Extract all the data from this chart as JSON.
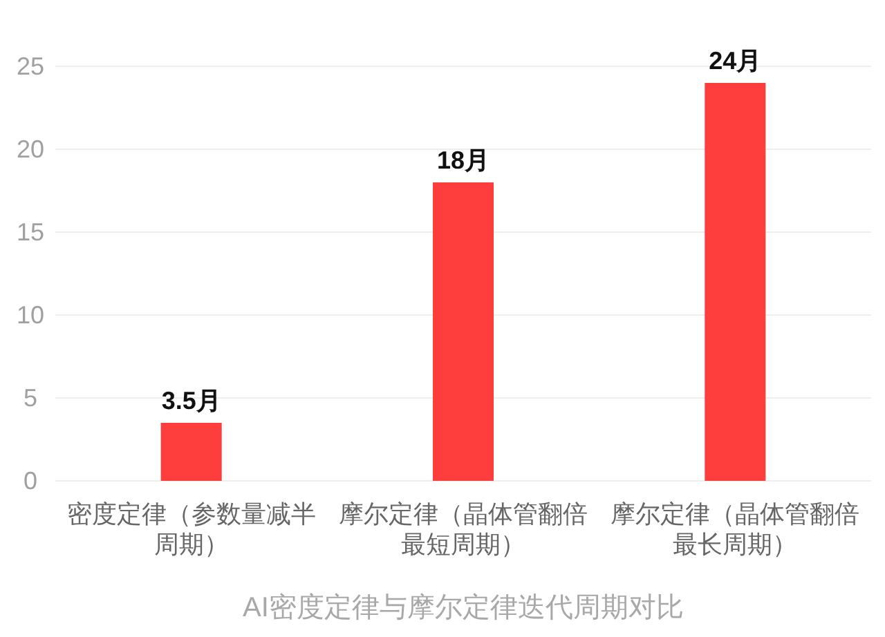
{
  "chart_data": {
    "type": "bar",
    "xlabel": "AI密度定律与摩尔定律迭代周期对比",
    "categories": [
      "密度定律（参数量减半周期）",
      "摩尔定律（晶体管翻倍最短周期）",
      "摩尔定律（晶体管翻倍最长周期）"
    ],
    "values": [
      3.5,
      18,
      24
    ],
    "value_labels": [
      "3.5月",
      "18月",
      "24月"
    ],
    "color": "#fd3e3c",
    "ylim": [
      0,
      25
    ],
    "yticks": [
      0,
      5,
      10,
      15,
      20,
      25
    ],
    "grid": "y"
  }
}
